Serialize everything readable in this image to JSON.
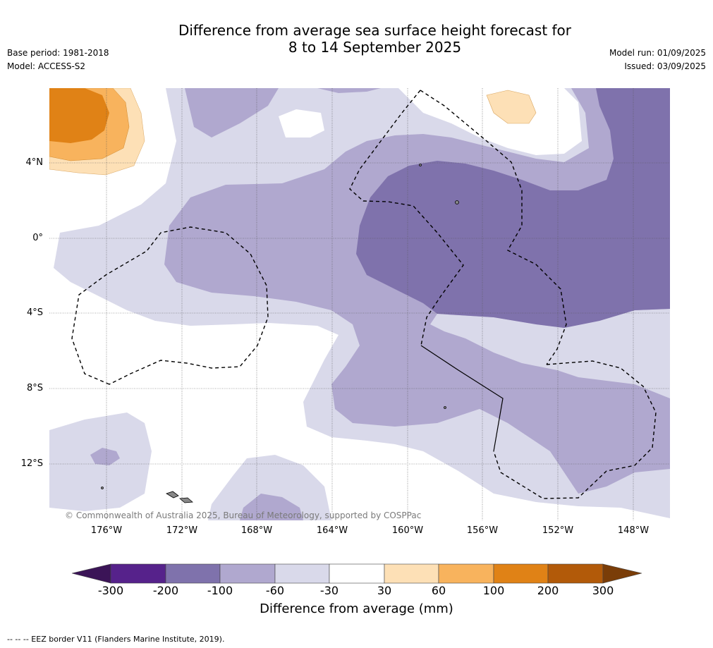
{
  "title": {
    "line1": "Difference from average sea surface height forecast for",
    "line2": "8 to 14 September 2025"
  },
  "meta_left": {
    "base_period": "Base period: 1981-2018",
    "model": "Model: ACCESS-S2"
  },
  "meta_right": {
    "model_run": "Model run: 01/09/2025",
    "issued": "Issued: 03/09/2025"
  },
  "map": {
    "lat_labels": [
      "4°N",
      "0°",
      "4°S",
      "8°S",
      "12°S"
    ],
    "lon_labels": [
      "176°W",
      "172°W",
      "168°W",
      "164°W",
      "160°W",
      "156°W",
      "152°W",
      "148°W"
    ],
    "copyright": "© Commonwealth of Australia 2025, Bureau of Meteorology, supported by COSPPac",
    "colors": {
      "neg300": "#3b1457",
      "neg200": "#56228b",
      "neg100": "#7f72ac",
      "neg60": "#b0a8cf",
      "neg30": "#d9d9ea",
      "neutral": "#ffffff",
      "pos30": "#fde0b6",
      "pos60": "#f8b35d",
      "pos100": "#e08216",
      "pos200": "#b25a09",
      "pos300": "#7a3d08"
    }
  },
  "colorbar": {
    "ticks": [
      "-300",
      "-200",
      "-100",
      "-60",
      "-30",
      "30",
      "60",
      "100",
      "200",
      "300"
    ],
    "title": "Difference from average (mm)"
  },
  "footnote": "--  --  -- EEZ border V11 (Flanders Marine Institute, 2019)."
}
